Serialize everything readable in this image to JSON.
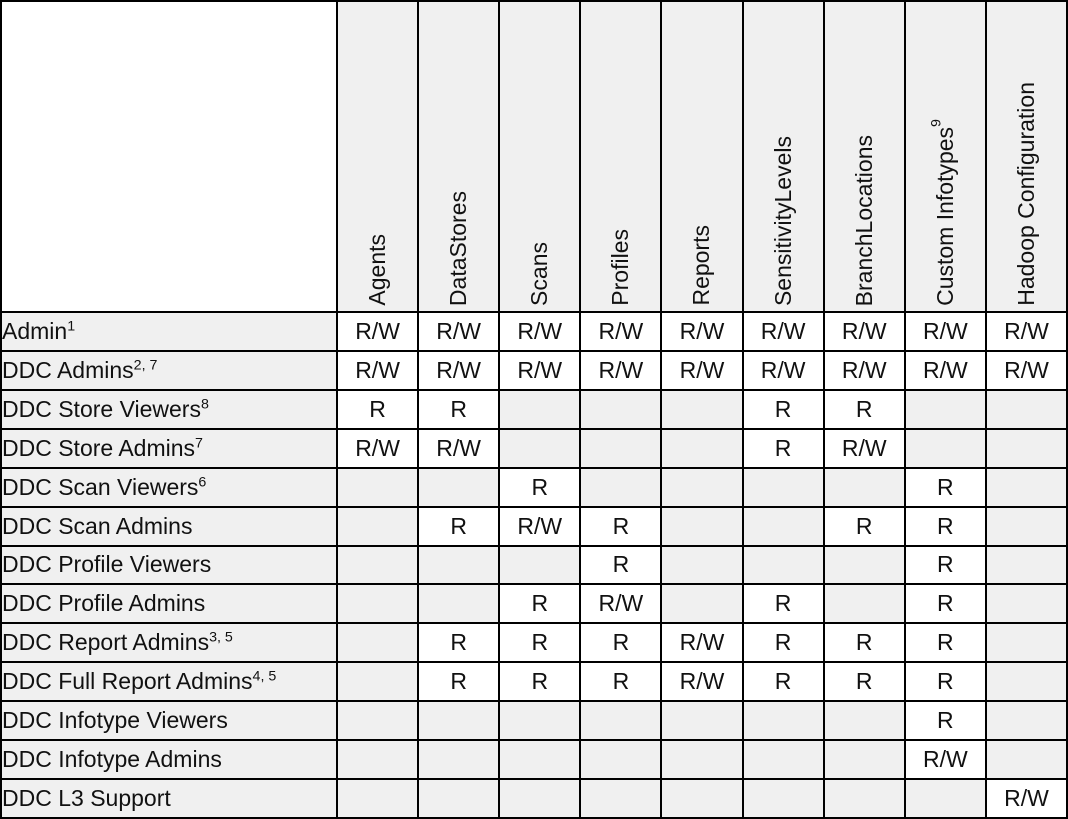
{
  "table": {
    "corner": "",
    "colors": {
      "border": "#000000",
      "shade_bg": "#f0f0f0",
      "value_bg": "#ffffff",
      "text": "#111111"
    },
    "legend": {
      "read": "R",
      "read_write": "R/W"
    },
    "columns": [
      {
        "label": "Agents",
        "sup": ""
      },
      {
        "label": "DataStores",
        "sup": ""
      },
      {
        "label": "Scans",
        "sup": ""
      },
      {
        "label": "Profiles",
        "sup": ""
      },
      {
        "label": "Reports",
        "sup": ""
      },
      {
        "label": "SensitivityLevels",
        "sup": ""
      },
      {
        "label": "BranchLocations",
        "sup": ""
      },
      {
        "label": "Custom Infotypes",
        "sup": "9"
      },
      {
        "label": "Hadoop Configuration",
        "sup": ""
      }
    ],
    "rows": [
      {
        "label": "Admin",
        "sup": "1",
        "cells": [
          "R/W",
          "R/W",
          "R/W",
          "R/W",
          "R/W",
          "R/W",
          "R/W",
          "R/W",
          "R/W"
        ]
      },
      {
        "label": "DDC Admins",
        "sup": "2, 7",
        "cells": [
          "R/W",
          "R/W",
          "R/W",
          "R/W",
          "R/W",
          "R/W",
          "R/W",
          "R/W",
          "R/W"
        ]
      },
      {
        "label": "DDC Store Viewers",
        "sup": "8",
        "cells": [
          "R",
          "R",
          "",
          "",
          "",
          "R",
          "R",
          "",
          ""
        ]
      },
      {
        "label": "DDC Store Admins",
        "sup": "7",
        "cells": [
          "R/W",
          "R/W",
          "",
          "",
          "",
          "R",
          "R/W",
          "",
          ""
        ]
      },
      {
        "label": "DDC Scan Viewers",
        "sup": "6",
        "cells": [
          "",
          "",
          "R",
          "",
          "",
          "",
          "",
          "R",
          ""
        ]
      },
      {
        "label": "DDC Scan Admins",
        "sup": "",
        "cells": [
          "",
          "R",
          "R/W",
          "R",
          "",
          "",
          "R",
          "R",
          ""
        ]
      },
      {
        "label": "DDC Profile Viewers",
        "sup": "",
        "cells": [
          "",
          "",
          "",
          "R",
          "",
          "",
          "",
          "R",
          ""
        ]
      },
      {
        "label": "DDC Profile Admins",
        "sup": "",
        "cells": [
          "",
          "",
          "R",
          "R/W",
          "",
          "R",
          "",
          "R",
          ""
        ]
      },
      {
        "label": "DDC Report Admins",
        "sup": "3, 5",
        "cells": [
          "",
          "R",
          "R",
          "R",
          "R/W",
          "R",
          "R",
          "R",
          ""
        ]
      },
      {
        "label": "DDC Full Report Admins",
        "sup": "4, 5",
        "cells": [
          "",
          "R",
          "R",
          "R",
          "R/W",
          "R",
          "R",
          "R",
          ""
        ]
      },
      {
        "label": "DDC Infotype Viewers",
        "sup": "",
        "cells": [
          "",
          "",
          "",
          "",
          "",
          "",
          "",
          "R",
          ""
        ]
      },
      {
        "label": "DDC Infotype Admins",
        "sup": "",
        "cells": [
          "",
          "",
          "",
          "",
          "",
          "",
          "",
          "R/W",
          ""
        ]
      },
      {
        "label": "DDC L3 Support",
        "sup": "",
        "cells": [
          "",
          "",
          "",
          "",
          "",
          "",
          "",
          "",
          "R/W"
        ]
      }
    ]
  }
}
